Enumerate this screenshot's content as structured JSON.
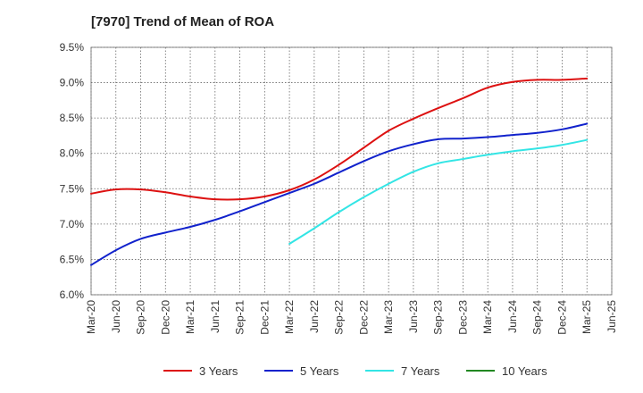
{
  "chart_data": {
    "type": "line",
    "title": "[7970]  Trend of Mean of ROA",
    "xlabel": "",
    "ylabel": "",
    "ylim": [
      6.0,
      9.5
    ],
    "yticks": [
      "6.0%",
      "6.5%",
      "7.0%",
      "7.5%",
      "8.0%",
      "8.5%",
      "9.0%",
      "9.5%"
    ],
    "xticks": [
      "Mar-20",
      "Jun-20",
      "Sep-20",
      "Dec-20",
      "Mar-21",
      "Jun-21",
      "Sep-21",
      "Dec-21",
      "Mar-22",
      "Jun-22",
      "Sep-22",
      "Dec-22",
      "Mar-23",
      "Jun-23",
      "Sep-23",
      "Dec-23",
      "Mar-24",
      "Jun-24",
      "Sep-24",
      "Dec-24",
      "Mar-25",
      "Jun-25"
    ],
    "grid": true,
    "legend_position": "bottom",
    "series": [
      {
        "name": "3 Years",
        "color": "#dd1111",
        "x": [
          "Mar-20",
          "Jun-20",
          "Sep-20",
          "Dec-20",
          "Mar-21",
          "Jun-21",
          "Sep-21",
          "Dec-21",
          "Mar-22",
          "Jun-22",
          "Sep-22",
          "Dec-22",
          "Mar-23",
          "Jun-23",
          "Sep-23",
          "Dec-23",
          "Mar-24",
          "Jun-24",
          "Sep-24",
          "Dec-24",
          "Mar-25"
        ],
        "values": [
          7.43,
          7.49,
          7.49,
          7.45,
          7.39,
          7.35,
          7.35,
          7.39,
          7.48,
          7.63,
          7.84,
          8.08,
          8.32,
          8.49,
          8.64,
          8.78,
          8.93,
          9.01,
          9.04,
          9.04,
          9.06
        ]
      },
      {
        "name": "5 Years",
        "color": "#1122cc",
        "x": [
          "Mar-20",
          "Jun-20",
          "Sep-20",
          "Dec-20",
          "Mar-21",
          "Jun-21",
          "Sep-21",
          "Dec-21",
          "Mar-22",
          "Jun-22",
          "Sep-22",
          "Dec-22",
          "Mar-23",
          "Jun-23",
          "Sep-23",
          "Dec-23",
          "Mar-24",
          "Jun-24",
          "Sep-24",
          "Dec-24",
          "Mar-25"
        ],
        "values": [
          6.42,
          6.63,
          6.79,
          6.88,
          6.96,
          7.06,
          7.18,
          7.31,
          7.44,
          7.57,
          7.73,
          7.89,
          8.03,
          8.13,
          8.2,
          8.21,
          8.23,
          8.26,
          8.29,
          8.34,
          8.42
        ]
      },
      {
        "name": "7 Years",
        "color": "#33e5e5",
        "x": [
          "Mar-22",
          "Jun-22",
          "Sep-22",
          "Dec-22",
          "Mar-23",
          "Jun-23",
          "Sep-23",
          "Dec-23",
          "Mar-24",
          "Jun-24",
          "Sep-24",
          "Dec-24",
          "Mar-25"
        ],
        "values": [
          6.72,
          6.94,
          7.17,
          7.38,
          7.57,
          7.74,
          7.86,
          7.92,
          7.98,
          8.03,
          8.07,
          8.12,
          8.19
        ]
      },
      {
        "name": "10 Years",
        "color": "#228822",
        "x": [],
        "values": []
      }
    ]
  }
}
